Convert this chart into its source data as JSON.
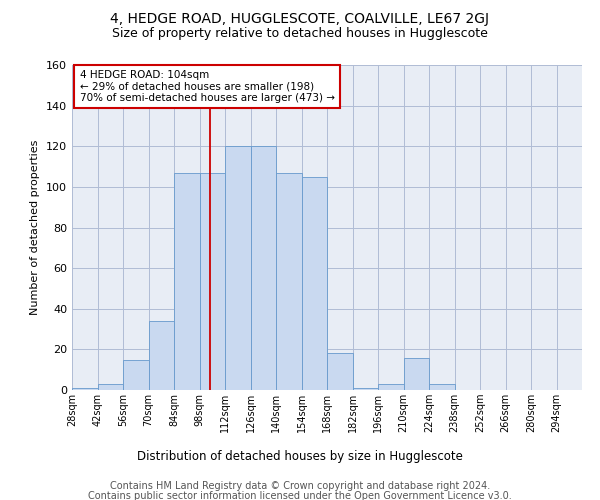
{
  "title": "4, HEDGE ROAD, HUGGLESCOTE, COALVILLE, LE67 2GJ",
  "subtitle": "Size of property relative to detached houses in Hugglescote",
  "xlabel": "Distribution of detached houses by size in Hugglescote",
  "ylabel": "Number of detached properties",
  "bin_edges": [
    28,
    42,
    56,
    70,
    84,
    98,
    112,
    126,
    140,
    154,
    168,
    182,
    196,
    210,
    224,
    238,
    252,
    266,
    280,
    294,
    308
  ],
  "bar_heights": [
    1,
    3,
    15,
    34,
    107,
    107,
    120,
    120,
    107,
    105,
    18,
    1,
    3,
    16,
    3,
    0,
    0,
    0,
    0,
    0
  ],
  "bar_color": "#c9d9f0",
  "bar_edge_color": "#6699cc",
  "grid_color": "#b0bcd4",
  "bg_color": "#e8edf5",
  "vline_x": 104,
  "vline_color": "#cc0000",
  "annotation_lines": [
    "4 HEDGE ROAD: 104sqm",
    "← 29% of detached houses are smaller (198)",
    "70% of semi-detached houses are larger (473) →"
  ],
  "annotation_box_color": "#ffffff",
  "annotation_box_edge": "#cc0000",
  "ylim": [
    0,
    160
  ],
  "yticks": [
    0,
    20,
    40,
    60,
    80,
    100,
    120,
    140,
    160
  ],
  "footer1": "Contains HM Land Registry data © Crown copyright and database right 2024.",
  "footer2": "Contains public sector information licensed under the Open Government Licence v3.0.",
  "title_fontsize": 10,
  "subtitle_fontsize": 9,
  "footer_fontsize": 7
}
